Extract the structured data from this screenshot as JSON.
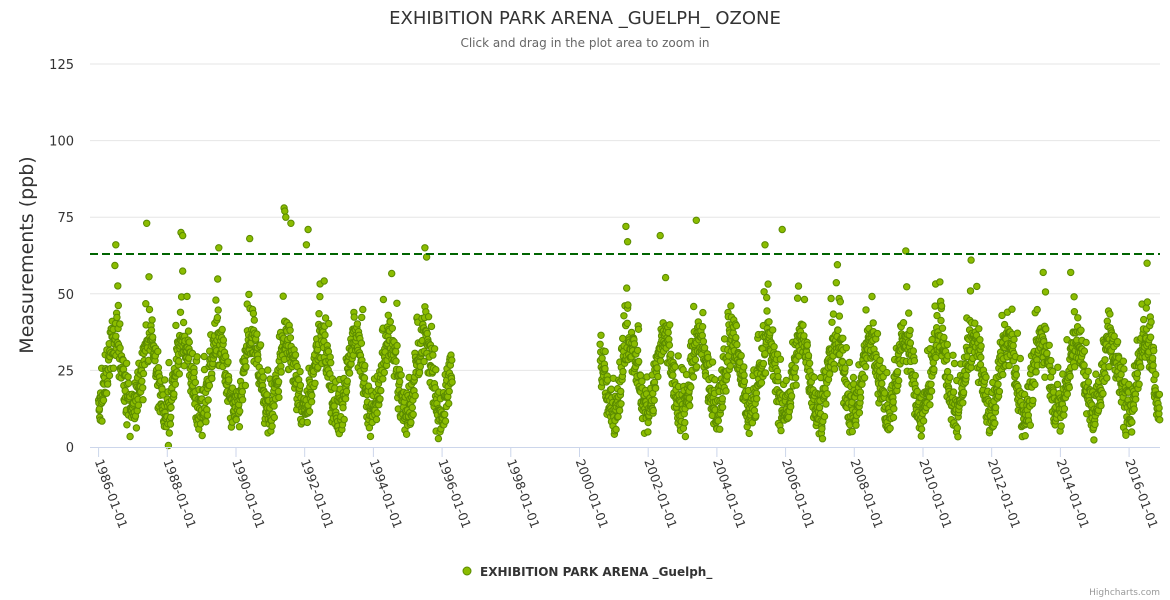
{
  "colors": {
    "series_fill": "#8bbc00",
    "series_stroke": "#5a8a00",
    "threshold": "#006400",
    "grid": "#e6e6e6",
    "axis": "#ccd6eb"
  },
  "chart_data": {
    "type": "scatter",
    "title": "EXHIBITION PARK ARENA _GUELPH_ OZONE",
    "subtitle": "Click and drag in the plot area to zoom in",
    "ylabel": "Measurements (ppb)",
    "xlabel": "",
    "ylim": [
      0,
      125
    ],
    "xlim": [
      1985.75,
      2016.9
    ],
    "yticks": [
      0,
      25,
      50,
      75,
      100,
      125
    ],
    "xticks": [
      {
        "value": 1986,
        "label": "1986-01-01"
      },
      {
        "value": 1988,
        "label": "1988-01-01"
      },
      {
        "value": 1990,
        "label": "1990-01-01"
      },
      {
        "value": 1992,
        "label": "1992-01-01"
      },
      {
        "value": 1994,
        "label": "1994-01-01"
      },
      {
        "value": 1996,
        "label": "1996-01-01"
      },
      {
        "value": 1998,
        "label": "1998-01-01"
      },
      {
        "value": 2000,
        "label": "2000-01-01"
      },
      {
        "value": 2002,
        "label": "2002-01-01"
      },
      {
        "value": 2004,
        "label": "2004-01-01"
      },
      {
        "value": 2006,
        "label": "2006-01-01"
      },
      {
        "value": 2008,
        "label": "2008-01-01"
      },
      {
        "value": 2010,
        "label": "2010-01-01"
      },
      {
        "value": 2012,
        "label": "2012-01-01"
      },
      {
        "value": 2014,
        "label": "2014-01-01"
      },
      {
        "value": 2016,
        "label": "2016-01-01"
      }
    ],
    "threshold": 63,
    "legend": {
      "position": "bottom-center"
    },
    "series": [
      {
        "name": "EXHIBITION PARK ARENA _Guelph_",
        "description": "Daily ozone measurements (ppb), seasonal cycle with summer peaks ~45-60 ppb and winter lows ~0-10 ppb",
        "periods": [
          [
            1986.0,
            1996.3
          ],
          [
            2000.6,
            2016.9
          ]
        ],
        "seasonal_mean": 23,
        "seasonal_amplitude": 12,
        "spread": 8,
        "peaks": [
          [
            1986.5,
            66
          ],
          [
            1987.4,
            73
          ],
          [
            1988.4,
            70
          ],
          [
            1988.45,
            69
          ],
          [
            1989.5,
            65
          ],
          [
            1990.4,
            68
          ],
          [
            1991.4,
            78
          ],
          [
            1991.42,
            77
          ],
          [
            1991.45,
            75
          ],
          [
            1991.6,
            73
          ],
          [
            1992.1,
            71
          ],
          [
            1992.05,
            66
          ],
          [
            1995.5,
            65
          ],
          [
            1995.55,
            62
          ],
          [
            2001.35,
            72
          ],
          [
            2001.4,
            67
          ],
          [
            2002.35,
            69
          ],
          [
            2003.4,
            74
          ],
          [
            2005.4,
            66
          ],
          [
            2005.9,
            71
          ],
          [
            2009.5,
            64
          ],
          [
            2011.4,
            61
          ],
          [
            2014.3,
            57
          ],
          [
            2013.5,
            57
          ]
        ]
      }
    ]
  },
  "credits": "Highcharts.com"
}
